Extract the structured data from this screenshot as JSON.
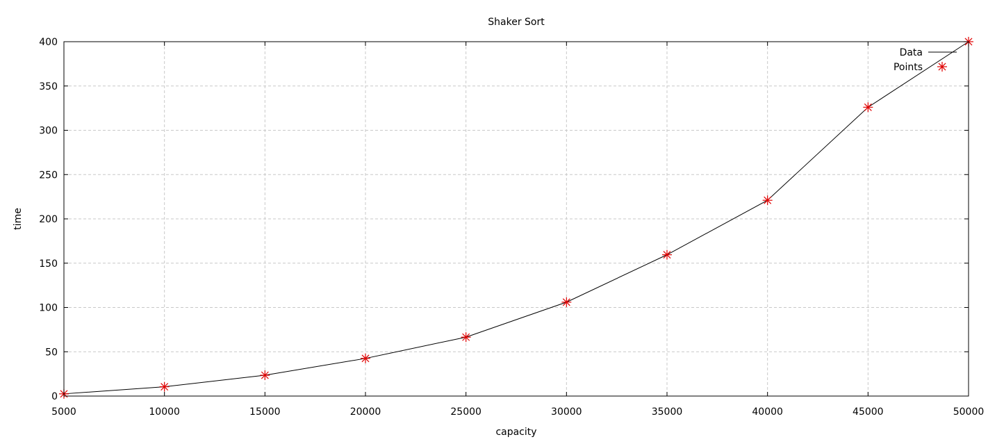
{
  "chart_data": {
    "type": "line",
    "title": "Shaker Sort",
    "xlabel": "capacity",
    "ylabel": "time",
    "xlim": [
      5000,
      50000
    ],
    "ylim": [
      0,
      400
    ],
    "xticks": [
      5000,
      10000,
      15000,
      20000,
      25000,
      30000,
      35000,
      40000,
      45000,
      50000
    ],
    "yticks": [
      0,
      50,
      100,
      150,
      200,
      250,
      300,
      350,
      400
    ],
    "grid": true,
    "legend_position": "top-right",
    "x": [
      5000,
      10000,
      15000,
      20000,
      25000,
      30000,
      35000,
      40000,
      45000,
      50000
    ],
    "series": [
      {
        "name": "Data",
        "style": "line",
        "color": "#000000",
        "values": [
          2.5,
          10.5,
          23.5,
          42.5,
          66.5,
          106,
          159.5,
          221,
          326,
          400
        ]
      },
      {
        "name": "Points",
        "style": "asterisk",
        "color": "#e00000",
        "values": [
          2.5,
          10.5,
          23.5,
          42.5,
          66.5,
          106,
          159.5,
          221,
          326,
          400
        ]
      }
    ]
  }
}
